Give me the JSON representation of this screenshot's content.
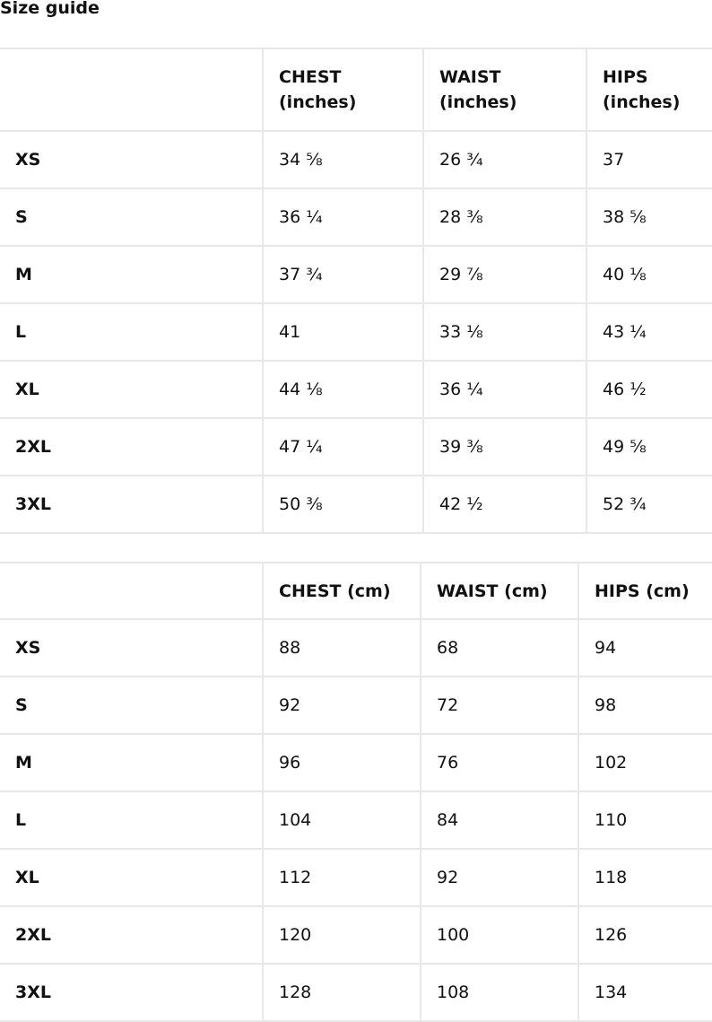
{
  "title": "Size guide",
  "inches_table": {
    "headers": [
      "",
      "CHEST (inches)",
      "WAIST (inches)",
      "HIPS (inches)"
    ],
    "rows": [
      [
        "XS",
        "34 ⅝",
        "26 ¾",
        "37"
      ],
      [
        "S",
        "36 ¼",
        "28 ⅜",
        "38 ⅝"
      ],
      [
        "M",
        "37 ¾",
        "29 ⅞",
        "40 ⅛"
      ],
      [
        "L",
        "41",
        "33 ⅛",
        "43 ¼"
      ],
      [
        "XL",
        "44 ⅛",
        "36 ¼",
        "46 ½"
      ],
      [
        "2XL",
        "47 ¼",
        "39 ⅜",
        "49 ⅝"
      ],
      [
        "3XL",
        "50 ⅜",
        "42 ½",
        "52 ¾"
      ]
    ]
  },
  "cm_table": {
    "headers": [
      "",
      "CHEST (cm)",
      "WAIST (cm)",
      "HIPS (cm)"
    ],
    "rows": [
      [
        "XS",
        "88",
        "68",
        "94"
      ],
      [
        "S",
        "92",
        "72",
        "98"
      ],
      [
        "M",
        "96",
        "76",
        "102"
      ],
      [
        "L",
        "104",
        "84",
        "110"
      ],
      [
        "XL",
        "112",
        "92",
        "118"
      ],
      [
        "2XL",
        "120",
        "100",
        "126"
      ],
      [
        "3XL",
        "128",
        "108",
        "134"
      ]
    ]
  }
}
